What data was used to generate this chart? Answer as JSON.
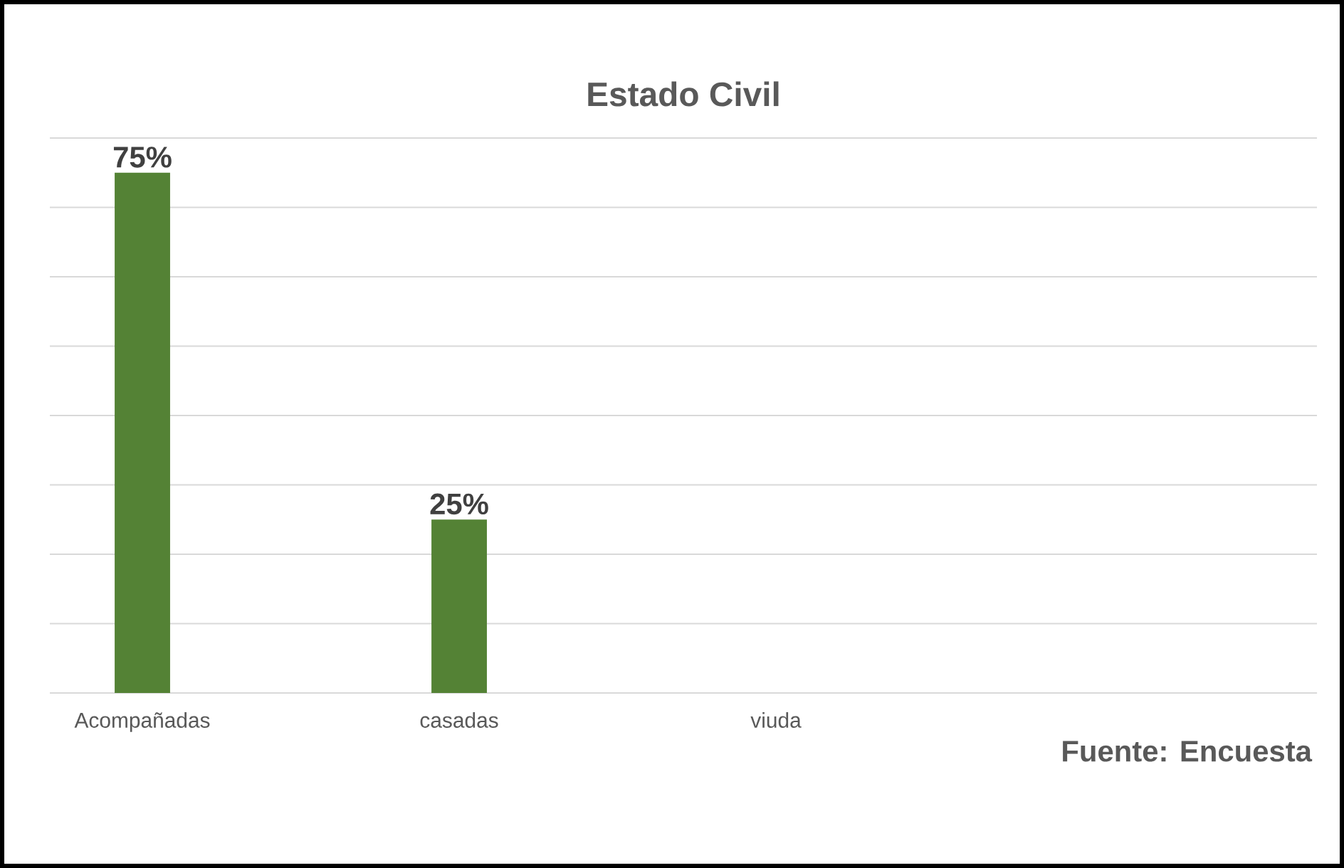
{
  "chart_data": {
    "type": "bar",
    "title": "Estado Civil",
    "categories": [
      "Acompañadas",
      "casadas",
      "viuda"
    ],
    "values": [
      75,
      25,
      0
    ],
    "value_labels": [
      "75%",
      "25%",
      null
    ],
    "color": "#548235",
    "ylim": [
      0,
      80
    ],
    "yticks": [
      {
        "value": 0,
        "label": null
      },
      {
        "value": 10,
        "label": null
      },
      {
        "value": 20,
        "label": null
      },
      {
        "value": 30,
        "label": null
      },
      {
        "value": 40,
        "label": null
      },
      {
        "value": 50,
        "label": null
      },
      {
        "value": 60,
        "label": null
      },
      {
        "value": 70,
        "label": null
      },
      {
        "value": 80,
        "label": null
      }
    ],
    "grid": "y",
    "tick_labels": "x",
    "annotations": [
      "Fuente: Encuesta"
    ]
  }
}
